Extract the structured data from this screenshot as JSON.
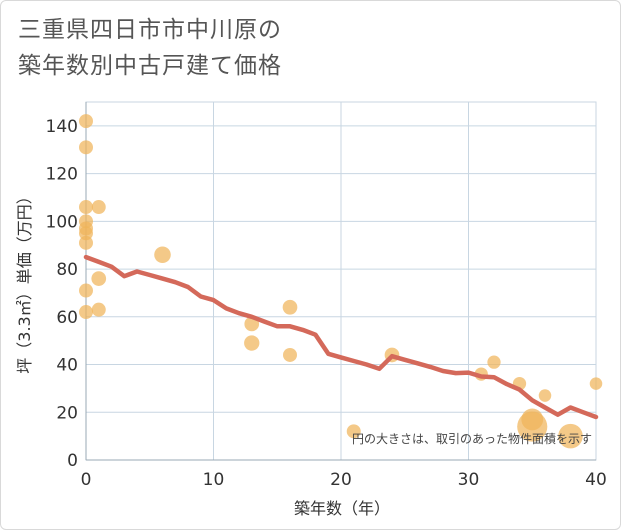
{
  "title_line1": "三重県四日市市中川原の",
  "title_line2": "築年数別中古戸建て価格",
  "chart_data": {
    "type": "scatter",
    "title": "三重県四日市市中川原の築年数別中古戸建て価格",
    "xlabel": "築年数（年）",
    "ylabel": "坪（3.3㎡）単価（万円）",
    "xlim": [
      0,
      40
    ],
    "ylim": [
      0,
      150
    ],
    "xticks": [
      0,
      10,
      20,
      30,
      40
    ],
    "yticks": [
      0,
      20,
      40,
      60,
      80,
      100,
      120,
      140
    ],
    "grid": true,
    "note": "円の大きさは、取引のあった物件面積を示す",
    "colors": {
      "points": "#f0b45a",
      "trend": "#d4695a",
      "grid": "#c8d6e2"
    },
    "points": [
      {
        "x": 0,
        "y": 142,
        "size": 1
      },
      {
        "x": 0,
        "y": 131,
        "size": 1
      },
      {
        "x": 0,
        "y": 106,
        "size": 1
      },
      {
        "x": 1,
        "y": 106,
        "size": 1
      },
      {
        "x": 0,
        "y": 100,
        "size": 1
      },
      {
        "x": 0,
        "y": 97,
        "size": 1
      },
      {
        "x": 0,
        "y": 95,
        "size": 1
      },
      {
        "x": 0,
        "y": 91,
        "size": 1
      },
      {
        "x": 6,
        "y": 86,
        "size": 1.4
      },
      {
        "x": 1,
        "y": 76,
        "size": 1.1
      },
      {
        "x": 0,
        "y": 71,
        "size": 1
      },
      {
        "x": 1,
        "y": 63,
        "size": 1
      },
      {
        "x": 0,
        "y": 62,
        "size": 1
      },
      {
        "x": 16,
        "y": 64,
        "size": 1.1
      },
      {
        "x": 13,
        "y": 57,
        "size": 1.1
      },
      {
        "x": 13,
        "y": 49,
        "size": 1.2
      },
      {
        "x": 16,
        "y": 44,
        "size": 1
      },
      {
        "x": 24,
        "y": 44,
        "size": 1.1
      },
      {
        "x": 32,
        "y": 41,
        "size": 0.9
      },
      {
        "x": 31,
        "y": 36,
        "size": 0.9
      },
      {
        "x": 34,
        "y": 32,
        "size": 0.9
      },
      {
        "x": 36,
        "y": 27,
        "size": 0.8
      },
      {
        "x": 40,
        "y": 32,
        "size": 0.8
      },
      {
        "x": 21,
        "y": 12,
        "size": 1
      },
      {
        "x": 35,
        "y": 17,
        "size": 2.2
      },
      {
        "x": 35,
        "y": 14,
        "size": 4.2
      },
      {
        "x": 38,
        "y": 10,
        "size": 2.8
      }
    ],
    "trend": {
      "x": [
        0,
        1,
        2,
        3,
        4,
        5,
        6,
        7,
        8,
        9,
        10,
        11,
        12,
        13,
        14,
        15,
        16,
        17,
        18,
        19,
        20,
        21,
        22,
        23,
        24,
        25,
        26,
        27,
        28,
        29,
        30,
        31,
        32,
        33,
        34,
        35,
        36,
        37,
        38,
        39,
        40
      ],
      "y": [
        85,
        83,
        81,
        77,
        79,
        77.5,
        76,
        74.5,
        72.5,
        68.5,
        67,
        63.5,
        61.5,
        60,
        58,
        56,
        56,
        54.5,
        52.5,
        44.5,
        43,
        41.5,
        40,
        38.2,
        43.5,
        42,
        40.5,
        39,
        37.3,
        36.4,
        36.6,
        35,
        34.7,
        31.8,
        29.5,
        25,
        22,
        19,
        22,
        20,
        18
      ]
    }
  }
}
